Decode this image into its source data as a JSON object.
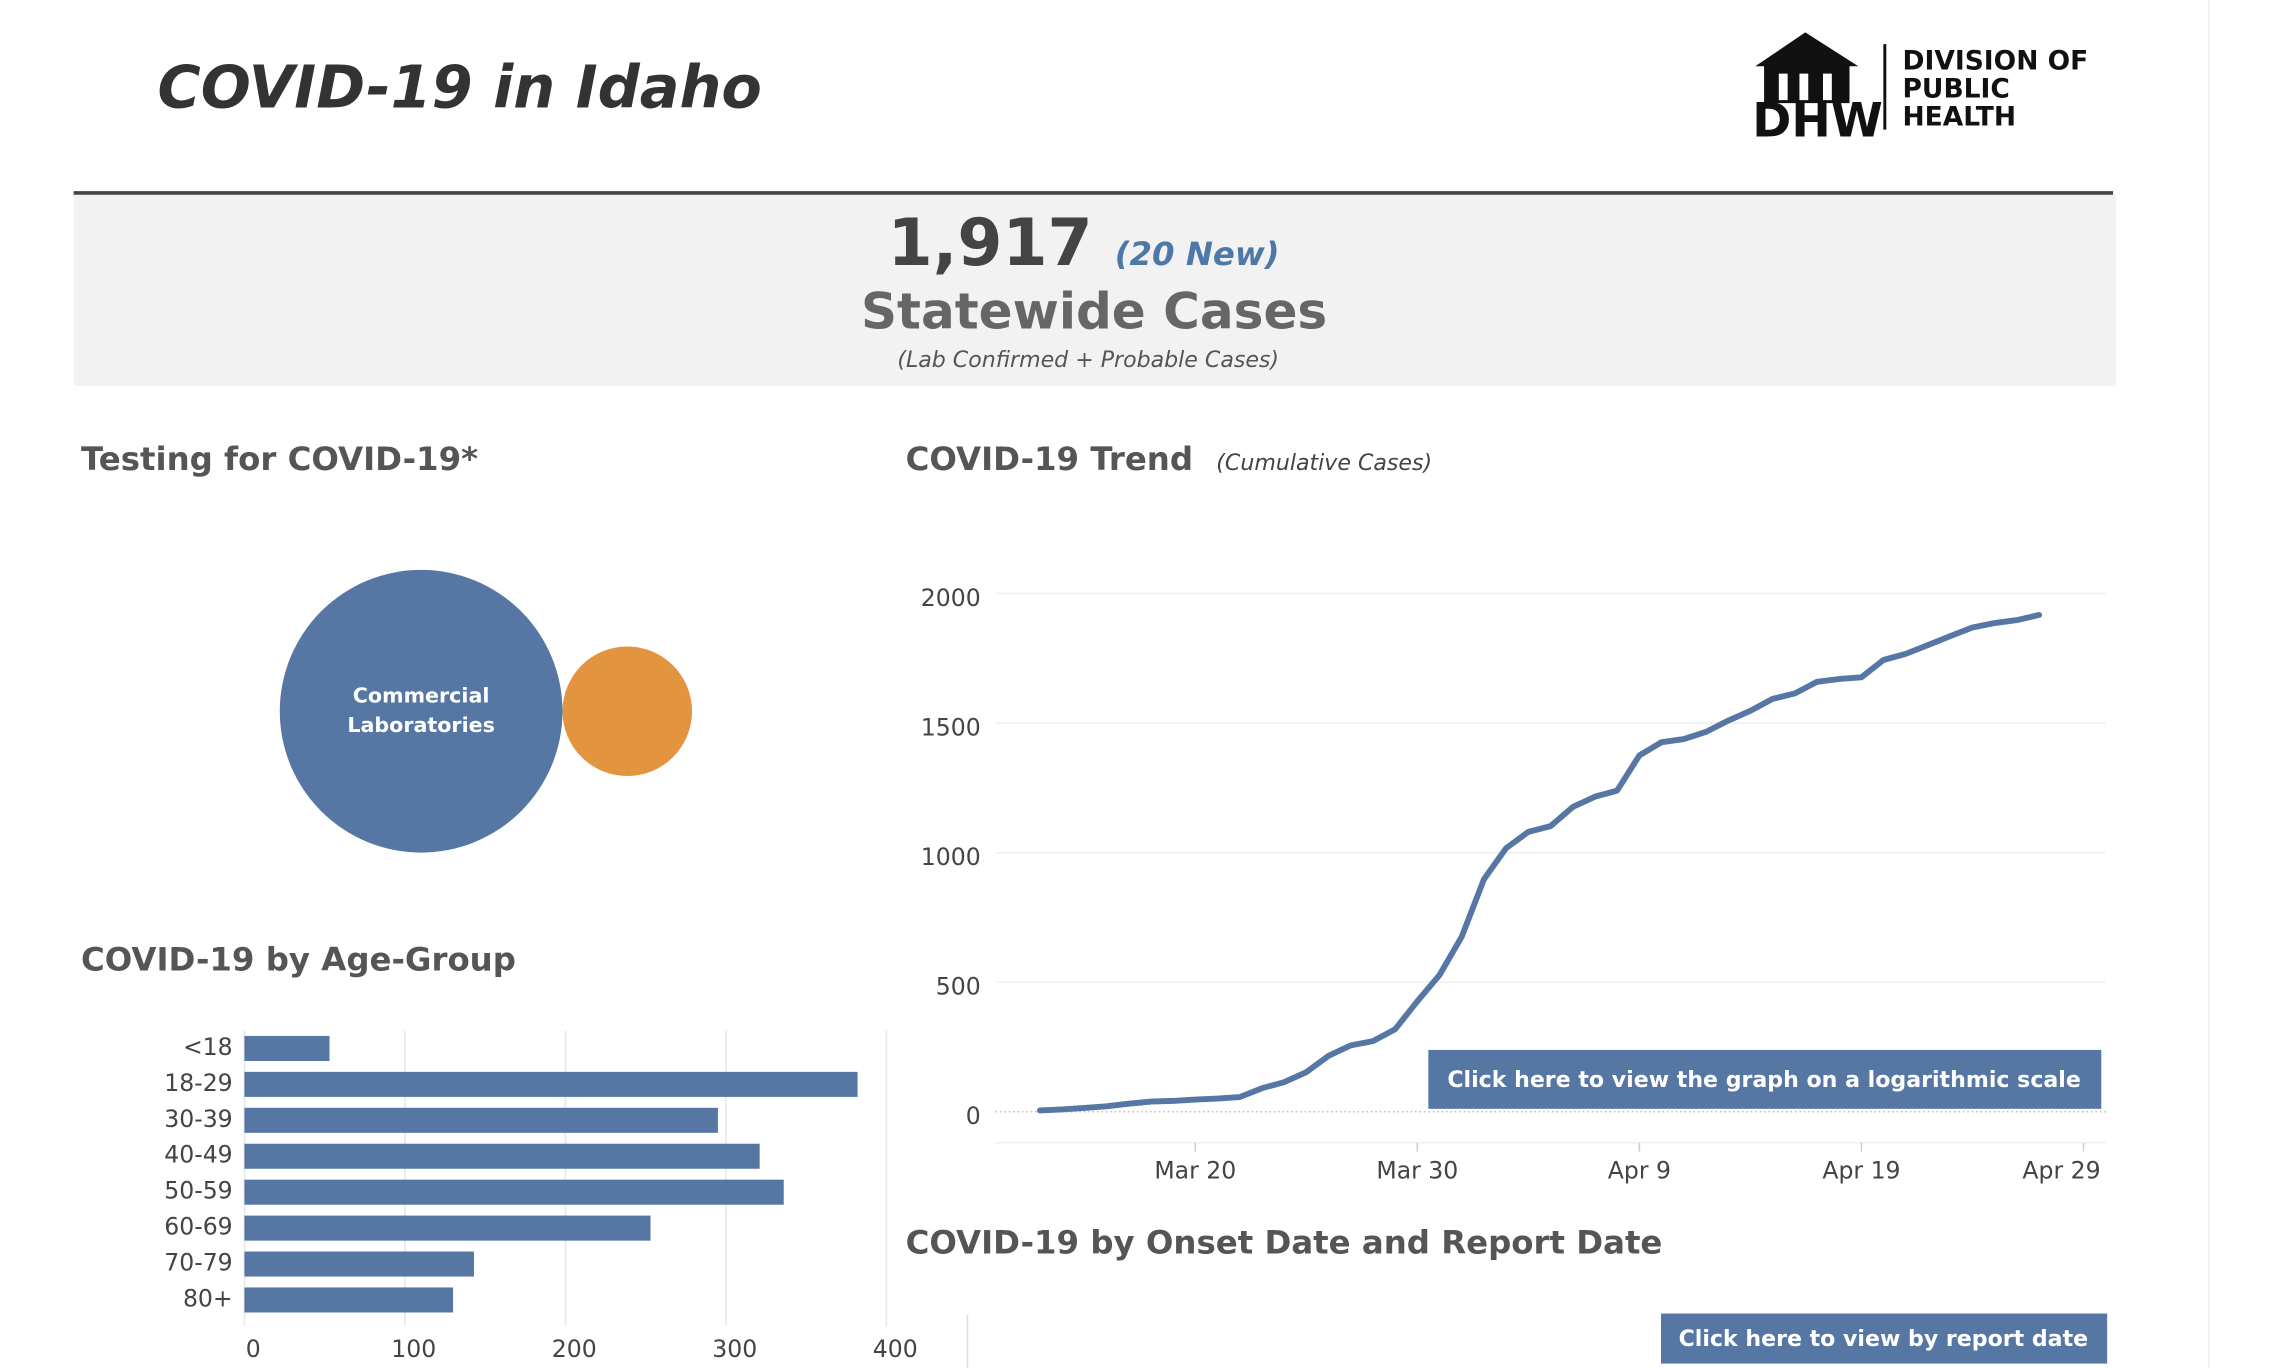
{
  "header": {
    "title": "COVID-19 in Idaho",
    "logo_mark": "DHW",
    "logo_lines": [
      "DIVISION OF",
      "PUBLIC",
      "HEALTH"
    ]
  },
  "banner": {
    "total": "1,917",
    "new": "(20 New)",
    "label": "Statewide Cases",
    "note": "(Lab Confirmed + Probable Cases)"
  },
  "buttons": {
    "log_scale": "Click here to view the graph on a logarithmic scale",
    "report_date": "Click here to view by report date"
  },
  "onset_title": "COVID-19 by Onset Date and Report Date",
  "chart_data": [
    {
      "type": "bubble",
      "title": "Testing for COVID-19*",
      "categories": [
        "Commercial Laboratories",
        null
      ],
      "values": [
        100,
        21
      ],
      "colors": [
        "#5677a4",
        "#e3943f"
      ]
    },
    {
      "type": "hbar",
      "title": "COVID-19 by Age-Group",
      "categories": [
        "<18",
        "18-29",
        "30-39",
        "40-49",
        "50-59",
        "60-69",
        "70-79",
        "80+"
      ],
      "values": [
        53,
        382,
        295,
        321,
        336,
        253,
        143,
        130
      ],
      "color": "#5677a4",
      "xlim": [
        0,
        400
      ],
      "xticks": [
        0,
        100,
        200,
        300,
        400
      ],
      "grid": true
    },
    {
      "type": "line",
      "title": "COVID-19 Trend",
      "subtitle": "(Cumulative Cases)",
      "color": "#5677a4",
      "x": [
        "Mar 13",
        "Mar 14",
        "Mar 15",
        "Mar 16",
        "Mar 17",
        "Mar 18",
        "Mar 19",
        "Mar 20",
        "Mar 21",
        "Mar 22",
        "Mar 23",
        "Mar 24",
        "Mar 25",
        "Mar 26",
        "Mar 27",
        "Mar 28",
        "Mar 29",
        "Mar 30",
        "Mar 31",
        "Apr 1",
        "Apr 2",
        "Apr 3",
        "Apr 4",
        "Apr 5",
        "Apr 6",
        "Apr 7",
        "Apr 8",
        "Apr 9",
        "Apr 10",
        "Apr 11",
        "Apr 12",
        "Apr 13",
        "Apr 14",
        "Apr 15",
        "Apr 16",
        "Apr 17",
        "Apr 18",
        "Apr 19",
        "Apr 20",
        "Apr 21",
        "Apr 22",
        "Apr 23",
        "Apr 24",
        "Apr 25",
        "Apr 26",
        "Apr 27"
      ],
      "values": [
        5,
        9,
        15,
        21,
        31,
        39,
        42,
        47,
        51,
        57,
        91,
        114,
        153,
        216,
        256,
        273,
        318,
        426,
        528,
        676,
        898,
        1017,
        1080,
        1102,
        1176,
        1216,
        1239,
        1375,
        1426,
        1438,
        1466,
        1509,
        1547,
        1593,
        1614,
        1659,
        1670,
        1676,
        1744,
        1767,
        1801,
        1835,
        1869,
        1886,
        1897,
        1917
      ],
      "xlim": [
        "Mar 11",
        "Apr 30"
      ],
      "xticks": [
        "Mar 20",
        "Mar 30",
        "Apr 9",
        "Apr 19",
        "Apr 29"
      ],
      "ylim": [
        0,
        2000
      ],
      "yticks": [
        0,
        500,
        1000,
        1500,
        2000
      ],
      "grid": true
    }
  ]
}
